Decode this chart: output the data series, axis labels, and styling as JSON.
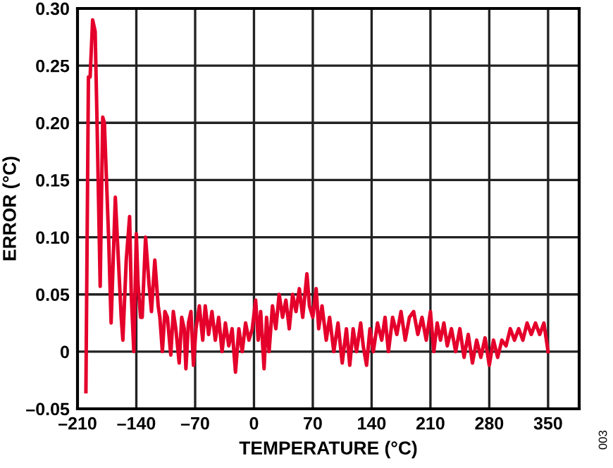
{
  "chart_data": {
    "type": "line",
    "xlabel": "TEMPERATURE (°C)",
    "ylabel": "ERROR (°C)",
    "xlim": [
      -210,
      387
    ],
    "ylim": [
      -0.05,
      0.3
    ],
    "xticks": [
      {
        "value": -210,
        "label": "–210"
      },
      {
        "value": -140,
        "label": "–140"
      },
      {
        "value": -70,
        "label": "–70"
      },
      0,
      70,
      140,
      210,
      280,
      350
    ],
    "yticks": [
      {
        "value": -0.05,
        "label": "–0.05"
      },
      0,
      0.05,
      {
        "value": 0.1,
        "label": "0.10"
      },
      0.15,
      {
        "value": 0.2,
        "label": "0.20"
      },
      0.25,
      {
        "value": 0.3,
        "label": "0.30"
      }
    ],
    "grid": true,
    "legend": false,
    "marker": "none",
    "line_style": "solid",
    "annotations": [
      "003"
    ],
    "series": [
      {
        "color": "#e4002b",
        "x": [
          -200,
          -197,
          -195,
          -192,
          -189,
          -187,
          -183,
          -180,
          -178,
          -175,
          -173,
          -170,
          -165,
          -162,
          -158,
          -156,
          -152,
          -148,
          -146,
          -143,
          -140,
          -138,
          -135,
          -133,
          -129,
          -125,
          -122,
          -118,
          -114,
          -112,
          -109,
          -106,
          -103,
          -99,
          -96,
          -93,
          -89,
          -86,
          -83,
          -81,
          -78,
          -75,
          -72,
          -69,
          -65,
          -61,
          -58,
          -54,
          -50,
          -46,
          -42,
          -38,
          -34,
          -30,
          -26,
          -22,
          -18,
          -14,
          -10,
          -6,
          -2,
          2,
          5,
          8,
          12,
          15,
          18,
          22,
          26,
          30,
          34,
          38,
          42,
          46,
          50,
          54,
          58,
          63,
          66,
          70,
          74,
          77,
          81,
          86,
          90,
          95,
          100,
          105,
          110,
          114,
          118,
          122,
          127,
          130,
          134,
          138,
          142,
          147,
          152,
          156,
          160,
          165,
          170,
          175,
          180,
          185,
          190,
          195,
          200,
          205,
          210,
          214,
          218,
          222,
          226,
          230,
          235,
          240,
          245,
          250,
          255,
          260,
          265,
          270,
          275,
          280,
          285,
          290,
          295,
          300,
          305,
          310,
          315,
          320,
          325,
          330,
          335,
          340,
          345,
          350
        ],
        "values": [
          -0.035,
          0.24,
          0.24,
          0.29,
          0.28,
          0.21,
          0.057,
          0.205,
          0.2,
          0.14,
          0.1,
          0.025,
          0.135,
          0.09,
          0.03,
          0.01,
          0.08,
          0.118,
          0.05,
          0.0,
          0.103,
          0.06,
          0.03,
          0.03,
          0.1,
          0.06,
          0.035,
          0.08,
          0.04,
          0.03,
          0.0,
          0.035,
          0.03,
          -0.003,
          0.035,
          0.02,
          -0.01,
          0.03,
          0.02,
          -0.015,
          0.025,
          0.035,
          -0.012,
          0.02,
          0.04,
          0.01,
          0.04,
          0.015,
          0.035,
          0.01,
          0.03,
          0.0,
          0.025,
          0.005,
          0.02,
          -0.018,
          0.02,
          0.0,
          0.025,
          0.01,
          0.02,
          0.045,
          0.01,
          0.035,
          -0.015,
          0.03,
          0.0,
          0.04,
          0.02,
          0.05,
          0.03,
          0.045,
          0.02,
          0.05,
          0.035,
          0.055,
          0.03,
          0.068,
          0.04,
          0.03,
          0.055,
          0.02,
          0.04,
          0.01,
          0.03,
          0.0,
          0.025,
          -0.01,
          0.02,
          -0.012,
          0.02,
          0.0,
          0.025,
          0.005,
          -0.012,
          0.02,
          0.0,
          0.025,
          0.01,
          0.03,
          0.0,
          0.03,
          0.015,
          0.035,
          0.01,
          0.03,
          0.035,
          0.015,
          0.03,
          0.01,
          0.035,
          0.0,
          0.025,
          0.01,
          0.025,
          0.005,
          0.02,
          0.0,
          0.02,
          -0.005,
          0.015,
          -0.01,
          0.01,
          -0.005,
          0.012,
          -0.012,
          0.01,
          -0.005,
          0.01,
          0.005,
          0.02,
          0.01,
          0.02,
          0.01,
          0.025,
          0.015,
          0.025,
          0.015,
          0.025,
          0.0
        ]
      }
    ]
  }
}
